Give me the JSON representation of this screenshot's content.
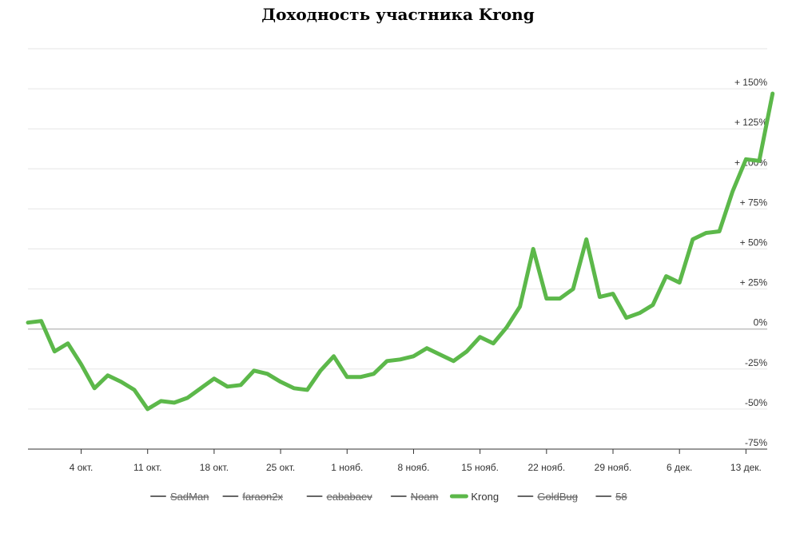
{
  "chart_data": {
    "type": "line",
    "title": "Доходность участника Krong",
    "xlabel": "",
    "ylabel": "",
    "ylim": [
      -75,
      175
    ],
    "y_ticks": [
      {
        "value": 150,
        "label": "+ 150%"
      },
      {
        "value": 125,
        "label": "+ 125%"
      },
      {
        "value": 100,
        "label": "+ 100%"
      },
      {
        "value": 75,
        "label": "+ 75%"
      },
      {
        "value": 50,
        "label": "+ 50%"
      },
      {
        "value": 25,
        "label": "+ 25%"
      },
      {
        "value": 0,
        "label": "0%"
      },
      {
        "value": -25,
        "label": "-25%"
      },
      {
        "value": -50,
        "label": "-50%"
      },
      {
        "value": -75,
        "label": "-75%"
      }
    ],
    "x_ticks": [
      {
        "index": 4,
        "label": "4 окт."
      },
      {
        "index": 9,
        "label": "11 окт."
      },
      {
        "index": 14,
        "label": "18 окт."
      },
      {
        "index": 19,
        "label": "25 окт."
      },
      {
        "index": 24,
        "label": "1 нояб."
      },
      {
        "index": 29,
        "label": "8 нояб."
      },
      {
        "index": 34,
        "label": "15 нояб."
      },
      {
        "index": 39,
        "label": "22 нояб."
      },
      {
        "index": 44,
        "label": "29 нояб."
      },
      {
        "index": 49,
        "label": "6 дек."
      },
      {
        "index": 54,
        "label": "13 дек."
      }
    ],
    "x_range": [
      0,
      55.6
    ],
    "series": [
      {
        "name": "Krong",
        "color": "#5cb84a",
        "hidden": false,
        "values": [
          4,
          5,
          -14,
          -9,
          -22,
          -37,
          -29,
          -33,
          -38,
          -50,
          -45,
          -46,
          -43,
          -37,
          -31,
          -36,
          -35,
          -26,
          -28,
          -33,
          -37,
          -38,
          -26,
          -17,
          -30,
          -30,
          -28,
          -20,
          -19,
          -17,
          -12,
          -16,
          -20,
          -14,
          -5,
          -9,
          1,
          14,
          50,
          19,
          19,
          25,
          56,
          20,
          22,
          7,
          10,
          15,
          33,
          29,
          56,
          60,
          61,
          86,
          106,
          105,
          147
        ]
      }
    ],
    "legend": {
      "placement": "bottom",
      "items": [
        {
          "name": "SadMan",
          "hidden": true
        },
        {
          "name": "faraon2x",
          "hidden": true
        },
        {
          "name": "eababaev",
          "hidden": true
        },
        {
          "name": "Noam",
          "hidden": true
        },
        {
          "name": "Krong",
          "hidden": false
        },
        {
          "name": "GoldBug",
          "hidden": true
        },
        {
          "name": "58",
          "hidden": true
        }
      ]
    },
    "grid": true,
    "colors": {
      "active_series": "#5cb84a",
      "hidden_legend": "#666666",
      "grid": "#e6e6e6",
      "zero_line": "#c0c0c0",
      "axis": "#333333"
    }
  }
}
